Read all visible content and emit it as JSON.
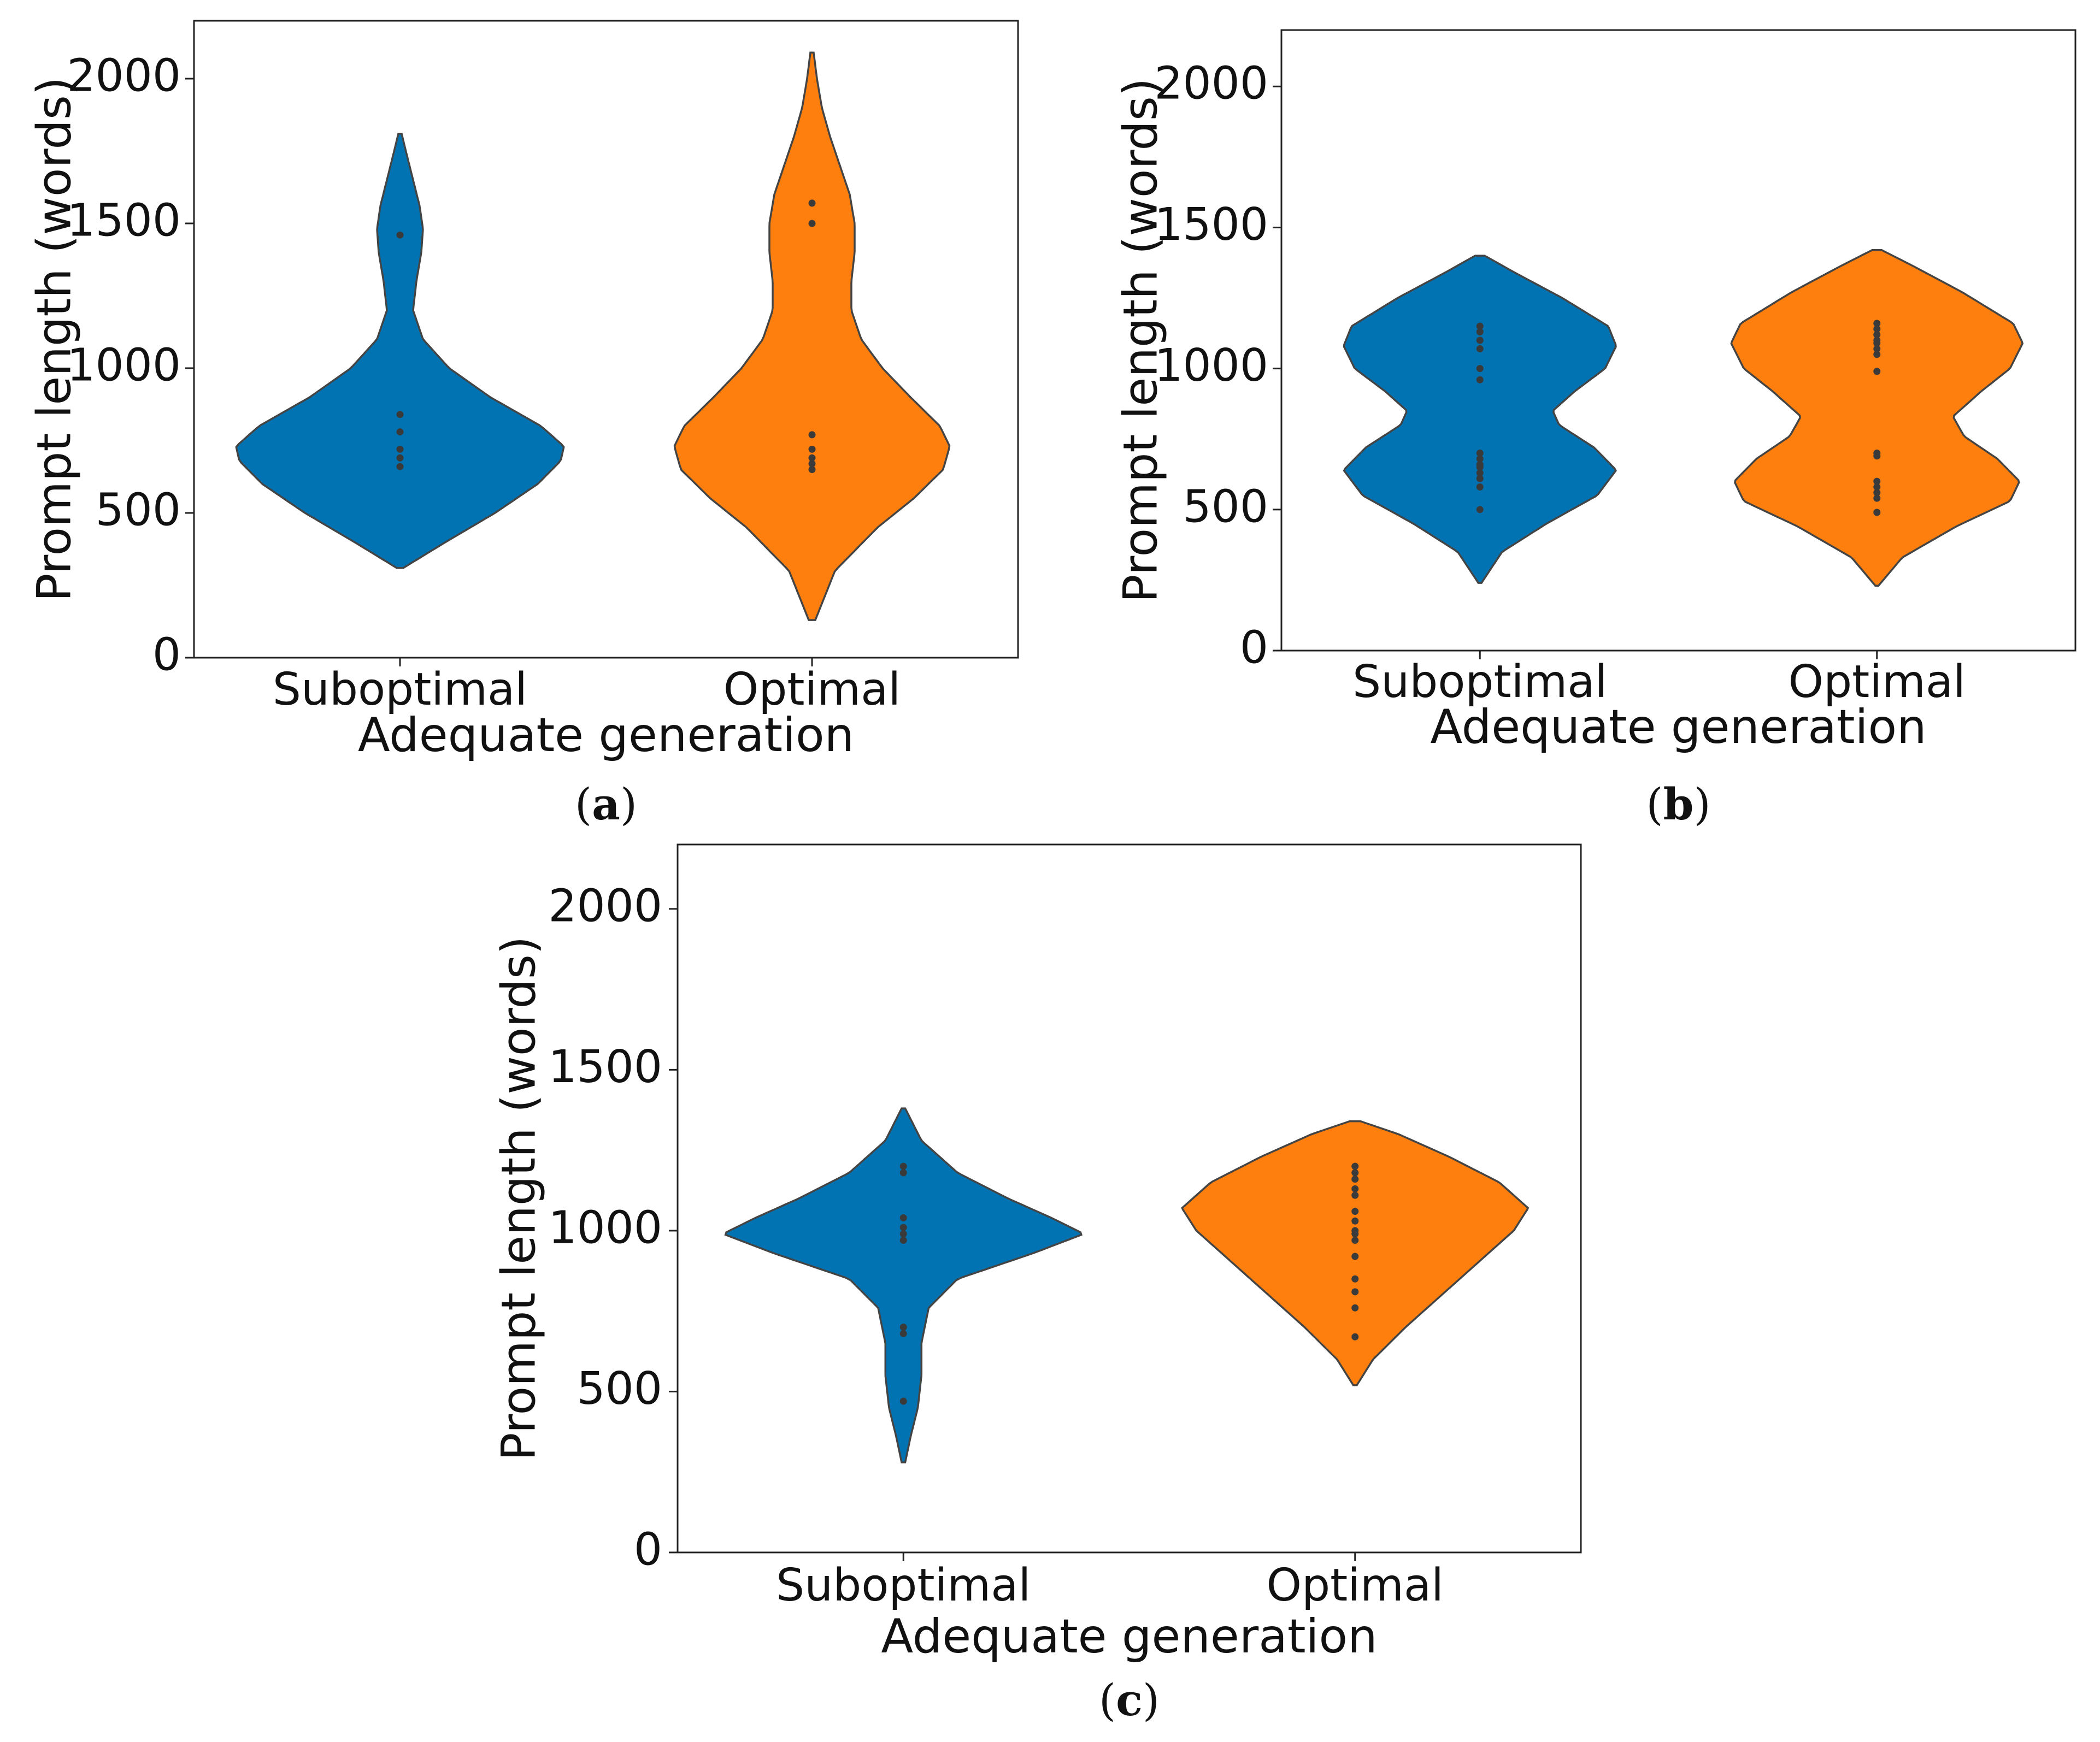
{
  "chart_data": [
    {
      "type": "violin",
      "panel_label": "a",
      "xlabel": "Adequate generation",
      "ylabel": "Prompt length (words)",
      "ylim": [
        0,
        2200
      ],
      "yticks": [
        0,
        500,
        1000,
        1500,
        2000
      ],
      "categories": [
        "Suboptimal",
        "Optimal"
      ],
      "series": [
        {
          "name": "Suboptimal",
          "color": "#0173b2",
          "points": [
            660,
            690,
            720,
            780,
            840,
            1460
          ],
          "profile": [
            [
              310,
              0.02
            ],
            [
              400,
              0.28
            ],
            [
              500,
              0.58
            ],
            [
              600,
              0.84
            ],
            [
              680,
              0.98
            ],
            [
              730,
              1.0
            ],
            [
              800,
              0.86
            ],
            [
              900,
              0.55
            ],
            [
              1000,
              0.3
            ],
            [
              1100,
              0.14
            ],
            [
              1200,
              0.08
            ],
            [
              1300,
              0.1
            ],
            [
              1400,
              0.13
            ],
            [
              1480,
              0.14
            ],
            [
              1560,
              0.12
            ],
            [
              1650,
              0.08
            ],
            [
              1740,
              0.04
            ],
            [
              1810,
              0.01
            ]
          ]
        },
        {
          "name": "Optimal",
          "color": "#ff7f0e",
          "points": [
            650,
            670,
            690,
            720,
            770,
            1500,
            1570
          ],
          "profile": [
            [
              130,
              0.02
            ],
            [
              300,
              0.14
            ],
            [
              450,
              0.4
            ],
            [
              550,
              0.62
            ],
            [
              650,
              0.8
            ],
            [
              730,
              0.84
            ],
            [
              800,
              0.78
            ],
            [
              900,
              0.6
            ],
            [
              1000,
              0.43
            ],
            [
              1100,
              0.3
            ],
            [
              1200,
              0.24
            ],
            [
              1300,
              0.24
            ],
            [
              1400,
              0.26
            ],
            [
              1500,
              0.26
            ],
            [
              1600,
              0.23
            ],
            [
              1700,
              0.17
            ],
            [
              1800,
              0.11
            ],
            [
              1900,
              0.06
            ],
            [
              2000,
              0.03
            ],
            [
              2090,
              0.01
            ]
          ]
        }
      ]
    },
    {
      "type": "violin",
      "panel_label": "b",
      "xlabel": "Adequate generation",
      "ylabel": "Prompt length (words)",
      "ylim": [
        0,
        2200
      ],
      "yticks": [
        0,
        500,
        1000,
        1500,
        2000
      ],
      "categories": [
        "Suboptimal",
        "Optimal"
      ],
      "series": [
        {
          "name": "Suboptimal",
          "color": "#0173b2",
          "points": [
            500,
            580,
            610,
            630,
            650,
            660,
            680,
            700,
            960,
            1000,
            1070,
            1100,
            1130,
            1150
          ],
          "profile": [
            [
              240,
              0.01
            ],
            [
              350,
              0.14
            ],
            [
              450,
              0.42
            ],
            [
              550,
              0.74
            ],
            [
              640,
              0.86
            ],
            [
              720,
              0.72
            ],
            [
              800,
              0.5
            ],
            [
              850,
              0.46
            ],
            [
              920,
              0.6
            ],
            [
              1000,
              0.79
            ],
            [
              1080,
              0.86
            ],
            [
              1150,
              0.81
            ],
            [
              1250,
              0.52
            ],
            [
              1340,
              0.22
            ],
            [
              1400,
              0.03
            ]
          ]
        },
        {
          "name": "Optimal",
          "color": "#ff7f0e",
          "points": [
            490,
            540,
            560,
            580,
            600,
            690,
            700,
            990,
            1050,
            1070,
            1090,
            1100,
            1120,
            1140,
            1160
          ],
          "profile": [
            [
              230,
              0.01
            ],
            [
              330,
              0.16
            ],
            [
              440,
              0.5
            ],
            [
              530,
              0.84
            ],
            [
              600,
              0.9
            ],
            [
              680,
              0.76
            ],
            [
              760,
              0.55
            ],
            [
              830,
              0.48
            ],
            [
              920,
              0.66
            ],
            [
              1000,
              0.84
            ],
            [
              1090,
              0.92
            ],
            [
              1160,
              0.86
            ],
            [
              1270,
              0.54
            ],
            [
              1360,
              0.24
            ],
            [
              1420,
              0.03
            ]
          ]
        }
      ]
    },
    {
      "type": "violin",
      "panel_label": "c",
      "xlabel": "Adequate generation",
      "ylabel": "Prompt length (words)",
      "ylim": [
        0,
        2200
      ],
      "yticks": [
        0,
        500,
        1000,
        1500,
        2000
      ],
      "categories": [
        "Suboptimal",
        "Optimal"
      ],
      "series": [
        {
          "name": "Suboptimal",
          "color": "#0173b2",
          "points": [
            470,
            680,
            700,
            970,
            990,
            1010,
            1040,
            1180,
            1200
          ],
          "profile": [
            [
              280,
              0.01
            ],
            [
              360,
              0.04
            ],
            [
              450,
              0.08
            ],
            [
              550,
              0.1
            ],
            [
              650,
              0.1
            ],
            [
              760,
              0.14
            ],
            [
              850,
              0.3
            ],
            [
              930,
              0.72
            ],
            [
              990,
              1.0
            ],
            [
              1040,
              0.82
            ],
            [
              1100,
              0.58
            ],
            [
              1180,
              0.3
            ],
            [
              1280,
              0.1
            ],
            [
              1380,
              0.01
            ]
          ]
        },
        {
          "name": "Optimal",
          "color": "#ff7f0e",
          "points": [
            670,
            760,
            810,
            850,
            920,
            970,
            990,
            1000,
            1030,
            1060,
            1110,
            1130,
            1160,
            1180,
            1200
          ],
          "profile": [
            [
              520,
              0.01
            ],
            [
              600,
              0.1
            ],
            [
              700,
              0.28
            ],
            [
              800,
              0.48
            ],
            [
              900,
              0.68
            ],
            [
              1000,
              0.88
            ],
            [
              1070,
              0.96
            ],
            [
              1150,
              0.8
            ],
            [
              1230,
              0.52
            ],
            [
              1300,
              0.24
            ],
            [
              1340,
              0.03
            ]
          ]
        }
      ]
    }
  ]
}
